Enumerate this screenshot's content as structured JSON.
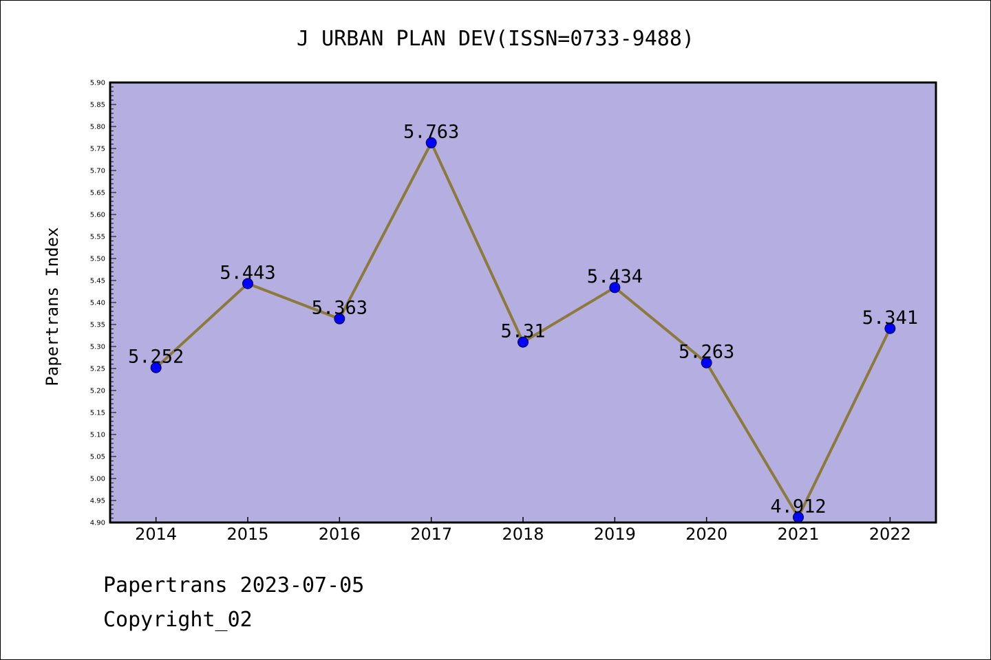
{
  "chart_data": {
    "type": "line",
    "title": "J URBAN PLAN DEV(ISSN=0733-9488)",
    "xlabel": "",
    "ylabel": "Papertrans Index",
    "categories": [
      "2014",
      "2015",
      "2016",
      "2017",
      "2018",
      "2019",
      "2020",
      "2021",
      "2022"
    ],
    "values": [
      5.252,
      5.443,
      5.363,
      5.763,
      5.31,
      5.434,
      5.263,
      4.912,
      5.341
    ],
    "data_labels": [
      "5.252",
      "5.443",
      "5.363",
      "5.763",
      "5.31",
      "5.434",
      "5.263",
      "4.912",
      "5.341"
    ],
    "ylim": [
      4.9,
      5.9
    ],
    "yticks": [
      "4.90",
      "4.95",
      "5.00",
      "5.05",
      "5.10",
      "5.15",
      "5.20",
      "5.25",
      "5.30",
      "5.35",
      "5.40",
      "5.45",
      "5.50",
      "5.55",
      "5.60",
      "5.65",
      "5.70",
      "5.75",
      "5.80",
      "5.85",
      "5.90"
    ],
    "grid": false,
    "colors": {
      "plot_background": "#b5aee1",
      "line": "#8c7a3c",
      "marker": "#0000ff"
    }
  },
  "footer": {
    "line1": "Papertrans 2023-07-05",
    "line2": "Copyright_02"
  }
}
